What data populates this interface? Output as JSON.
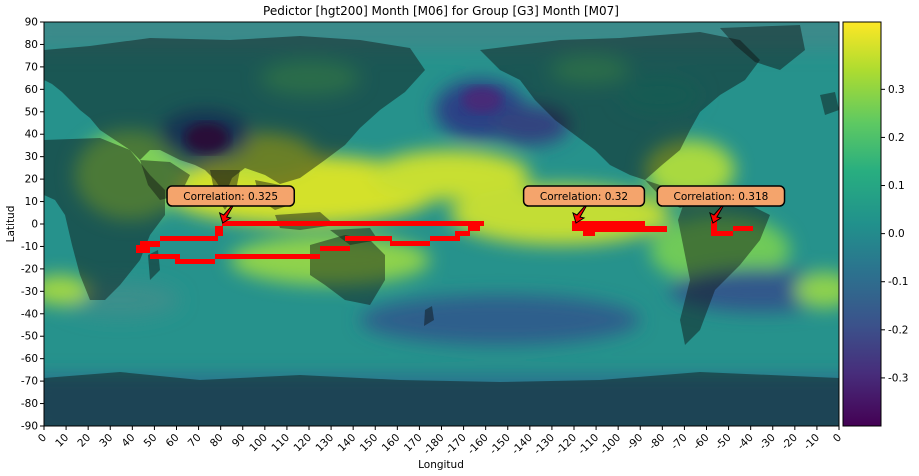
{
  "chart_data": {
    "type": "heatmap",
    "title": "Pedictor [hgt200] Month [M06] for Group [G3] Month [M07]",
    "xlabel": "Longitud",
    "ylabel": "Latitud",
    "xticks": [
      "0",
      "10",
      "20",
      "30",
      "40",
      "50",
      "60",
      "70",
      "80",
      "90",
      "100",
      "110",
      "120",
      "130",
      "140",
      "150",
      "160",
      "170",
      "-180",
      "-170",
      "-160",
      "-150",
      "-140",
      "-130",
      "-120",
      "-110",
      "-100",
      "-90",
      "-80",
      "-70",
      "-60",
      "-50",
      "-40",
      "-30",
      "-20",
      "-10",
      "0"
    ],
    "yticks": [
      "90",
      "80",
      "70",
      "60",
      "50",
      "40",
      "30",
      "20",
      "10",
      "0",
      "-10",
      "-20",
      "-30",
      "-40",
      "-50",
      "-60",
      "-70",
      "-80",
      "-90"
    ],
    "xlim": [
      0,
      360
    ],
    "ylim": [
      -90,
      90
    ],
    "colormap": "viridis",
    "colorbar": {
      "min": -0.4,
      "max": 0.44,
      "ticks": [
        "0.3",
        "0.2",
        "0.1",
        "0.0",
        "-0.1",
        "-0.2",
        "-0.3"
      ]
    },
    "masked_region_color": "#ff0000",
    "annotations": [
      {
        "text": "Correlation: 0.325",
        "lon": 80,
        "lat": 0
      },
      {
        "text": "Correlation: 0.32",
        "lon": 240,
        "lat": 0
      },
      {
        "text": "Correlation: 0.318",
        "lon": 302,
        "lat": 0
      }
    ],
    "annotation_box_color": "#f4a46c"
  }
}
